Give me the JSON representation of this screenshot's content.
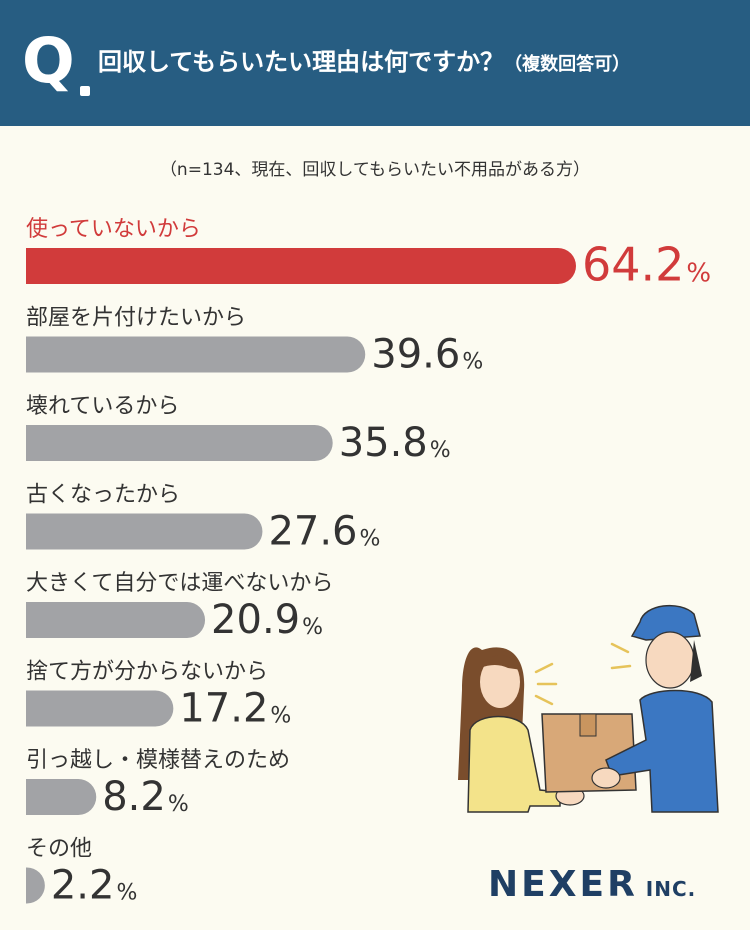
{
  "header": {
    "q_letter": "Q",
    "title": "回収してもらいたい理由は何ですか？",
    "note": "（複数回答可）"
  },
  "sample_note": "（n=134、現在、回収してもらいたい不用品がある方）",
  "brand": {
    "main": "NEXER",
    "sub": "INC."
  },
  "colors": {
    "header": "#275d82",
    "highlight": "#d13b3b",
    "bar": "#a2a3a6",
    "text": "#333333",
    "background": "#fcfbf1"
  },
  "illustration": "delivery-worker-handing-box-to-woman",
  "chart_data": {
    "type": "bar",
    "orientation": "horizontal",
    "unit": "%",
    "categories": [
      "使っていないから",
      "部屋を片付けたいから",
      "壊れているから",
      "古くなったから",
      "大きくて自分では運べないから",
      "捨て方が分からないから",
      "引っ越し・模様替えのため",
      "その他"
    ],
    "values": [
      64.2,
      39.6,
      35.8,
      27.6,
      20.9,
      17.2,
      8.2,
      2.2
    ],
    "value_labels": [
      "64.2",
      "39.6",
      "35.8",
      "27.6",
      "20.9",
      "17.2",
      "8.2",
      "2.2"
    ],
    "highlight_index": 0,
    "xlim": [
      0,
      64.2
    ],
    "grid": false,
    "legend": "none"
  }
}
